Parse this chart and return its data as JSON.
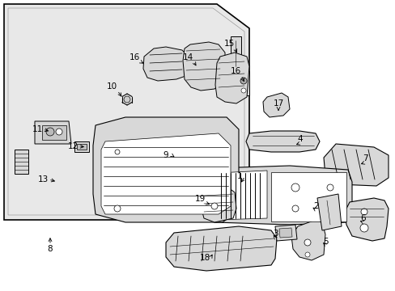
{
  "bg_color": "#ffffff",
  "panel_bg": "#e8e8e8",
  "fig_width": 4.89,
  "fig_height": 3.6,
  "dpi": 100,
  "labels": [
    [
      "1",
      296,
      218
    ],
    [
      "2",
      391,
      255
    ],
    [
      "3",
      340,
      289
    ],
    [
      "4",
      371,
      172
    ],
    [
      "5",
      403,
      299
    ],
    [
      "6",
      449,
      270
    ],
    [
      "7",
      451,
      196
    ],
    [
      "8",
      62,
      308
    ],
    [
      "9",
      205,
      192
    ],
    [
      "10",
      138,
      107
    ],
    [
      "11",
      46,
      160
    ],
    [
      "12",
      90,
      181
    ],
    [
      "13",
      53,
      222
    ],
    [
      "14",
      232,
      71
    ],
    [
      "15",
      283,
      54
    ],
    [
      "16",
      166,
      71
    ],
    [
      "16",
      291,
      88
    ],
    [
      "17",
      344,
      128
    ],
    [
      "18",
      253,
      319
    ],
    [
      "19",
      247,
      246
    ]
  ],
  "arrows": [
    [
      [
        303,
        218
      ],
      [
        296,
        228
      ]
    ],
    [
      [
        391,
        260
      ],
      [
        384,
        255
      ]
    ],
    [
      [
        340,
        294
      ],
      [
        336,
        289
      ]
    ],
    [
      [
        371,
        177
      ],
      [
        363,
        180
      ]
    ],
    [
      [
        403,
        304
      ],
      [
        397,
        298
      ]
    ],
    [
      [
        449,
        275
      ],
      [
        442,
        272
      ]
    ],
    [
      [
        451,
        201
      ],
      [
        443,
        204
      ]
    ],
    [
      [
        62,
        303
      ],
      [
        62,
        291
      ]
    ],
    [
      [
        212,
        192
      ],
      [
        218,
        196
      ]
    ],
    [
      [
        145,
        112
      ],
      [
        152,
        122
      ]
    ],
    [
      [
        53,
        160
      ],
      [
        63,
        163
      ]
    ],
    [
      [
        97,
        181
      ],
      [
        107,
        182
      ]
    ],
    [
      [
        60,
        222
      ],
      [
        71,
        225
      ]
    ],
    [
      [
        239,
        76
      ],
      [
        244,
        84
      ]
    ],
    [
      [
        290,
        59
      ],
      [
        294,
        68
      ]
    ],
    [
      [
        173,
        76
      ],
      [
        180,
        80
      ]
    ],
    [
      [
        298,
        93
      ],
      [
        303,
        104
      ]
    ],
    [
      [
        344,
        133
      ],
      [
        344,
        140
      ]
    ],
    [
      [
        260,
        319
      ],
      [
        264,
        312
      ]
    ],
    [
      [
        254,
        251
      ],
      [
        262,
        254
      ]
    ]
  ]
}
